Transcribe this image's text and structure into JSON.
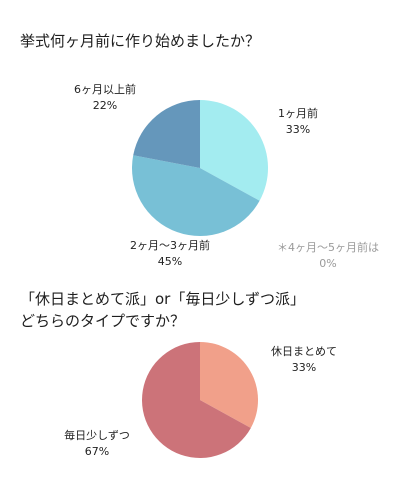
{
  "chart_data": [
    {
      "type": "pie",
      "title": "挙式何ヶ月前に作り始めましたか？",
      "slices": [
        {
          "label": "1ヶ月前",
          "value": 33,
          "display": "33%",
          "color": "#a3ecf0"
        },
        {
          "label": "2ヶ月〜3ヶ月前",
          "value": 45,
          "display": "45%",
          "color": "#78c0d6"
        },
        {
          "label": "6ヶ月以上前",
          "value": 22,
          "display": "22%",
          "color": "#6597bb"
        }
      ],
      "note": {
        "label": "＊4ヶ月〜5ヶ月前は",
        "display": "0%"
      }
    },
    {
      "type": "pie",
      "title_line1": "「休日まとめて派」or「毎日少しずつ派」",
      "title_line2": "どちらのタイプですか？",
      "slices": [
        {
          "label": "休日まとめて",
          "value": 33,
          "display": "33%",
          "color": "#f1a08a"
        },
        {
          "label": "毎日少しずつ",
          "value": 67,
          "display": "67%",
          "color": "#cc7379"
        }
      ]
    }
  ]
}
